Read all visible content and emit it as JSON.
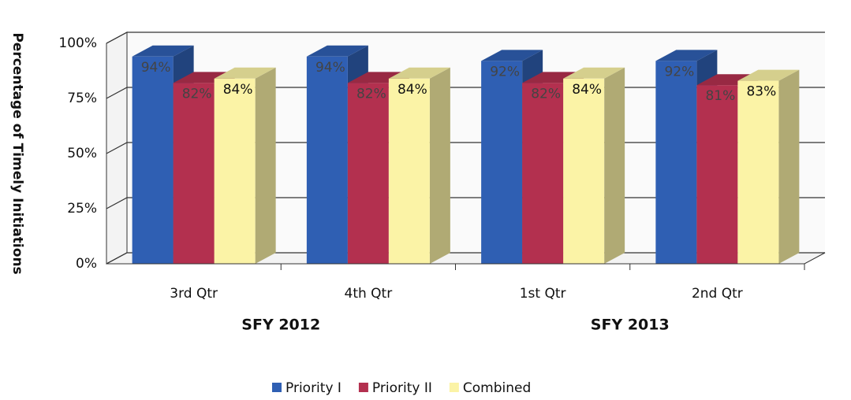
{
  "chart_data": {
    "type": "bar3d",
    "y_label": "Percentage of Timely Initiations",
    "categories": [
      "3rd Qtr",
      "4th Qtr",
      "1st Qtr",
      "2nd Qtr"
    ],
    "groups": [
      "SFY 2012",
      "SFY 2013"
    ],
    "series": [
      {
        "name": "Priority I",
        "color": "#2f5fb3",
        "values": [
          94,
          94,
          92,
          92
        ],
        "value_labels": [
          "94%",
          "94%",
          "92%",
          "92%"
        ]
      },
      {
        "name": "Priority II",
        "color": "#b3304f",
        "values": [
          82,
          82,
          82,
          81
        ],
        "value_labels": [
          "82%",
          "82%",
          "82%",
          "81%"
        ]
      },
      {
        "name": "Combined",
        "color": "#fbf3a6",
        "values": [
          84,
          84,
          84,
          83
        ],
        "value_labels": [
          "84%",
          "84%",
          "84%",
          "83%"
        ]
      }
    ],
    "ylim": [
      0,
      100
    ],
    "yticks": [
      {
        "value": 0,
        "label": "0%"
      },
      {
        "value": 25,
        "label": "25%"
      },
      {
        "value": 50,
        "label": "50%"
      },
      {
        "value": 75,
        "label": "75%"
      },
      {
        "value": 100,
        "label": "100%"
      }
    ],
    "grid": true,
    "legend": "bottom"
  }
}
